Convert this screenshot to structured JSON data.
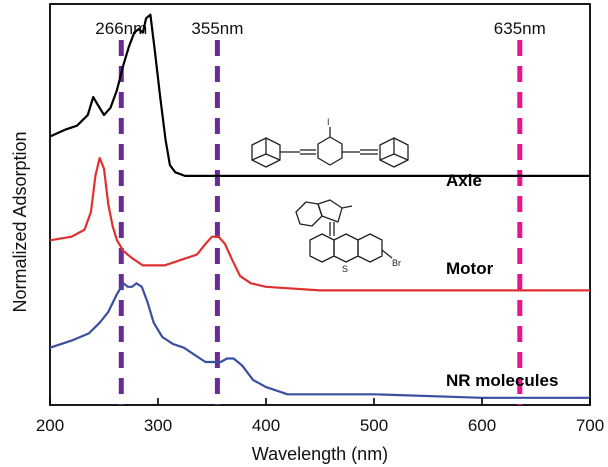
{
  "chart_data": {
    "type": "line",
    "xlabel": "Wavelength (nm)",
    "ylabel": "Normalized Adsorption",
    "xlim": [
      200,
      700
    ],
    "x_ticks": [
      200,
      300,
      400,
      500,
      600,
      700
    ],
    "grid": false,
    "y_ticks_shown": false,
    "markers": [
      {
        "x": 266,
        "label": "266nm",
        "color": "#6a2a9a"
      },
      {
        "x": 355,
        "label": "355nm",
        "color": "#6a2a9a"
      },
      {
        "x": 635,
        "label": "635nm",
        "color": "#e8148c"
      }
    ],
    "series": [
      {
        "name": "Axle",
        "color": "#000000",
        "points": [
          [
            200,
            0.63
          ],
          [
            215,
            0.65
          ],
          [
            225,
            0.66
          ],
          [
            235,
            0.69
          ],
          [
            240,
            0.74
          ],
          [
            244,
            0.72
          ],
          [
            250,
            0.69
          ],
          [
            256,
            0.71
          ],
          [
            262,
            0.76
          ],
          [
            268,
            0.83
          ],
          [
            273,
            0.88
          ],
          [
            278,
            0.92
          ],
          [
            282,
            0.93
          ],
          [
            286,
            0.92
          ],
          [
            289,
            0.96
          ],
          [
            293,
            0.97
          ],
          [
            297,
            0.87
          ],
          [
            302,
            0.74
          ],
          [
            307,
            0.62
          ],
          [
            311,
            0.55
          ],
          [
            316,
            0.53
          ],
          [
            325,
            0.52
          ],
          [
            350,
            0.52
          ],
          [
            400,
            0.52
          ],
          [
            500,
            0.52
          ],
          [
            600,
            0.52
          ],
          [
            700,
            0.52
          ]
        ]
      },
      {
        "name": "Motor",
        "color": "#e03131",
        "points": [
          [
            200,
            0.34
          ],
          [
            220,
            0.35
          ],
          [
            232,
            0.37
          ],
          [
            238,
            0.42
          ],
          [
            242,
            0.52
          ],
          [
            246,
            0.57
          ],
          [
            250,
            0.54
          ],
          [
            254,
            0.44
          ],
          [
            258,
            0.38
          ],
          [
            262,
            0.34
          ],
          [
            268,
            0.31
          ],
          [
            276,
            0.29
          ],
          [
            286,
            0.27
          ],
          [
            296,
            0.27
          ],
          [
            306,
            0.27
          ],
          [
            316,
            0.28
          ],
          [
            326,
            0.29
          ],
          [
            336,
            0.3
          ],
          [
            344,
            0.33
          ],
          [
            350,
            0.35
          ],
          [
            356,
            0.35
          ],
          [
            362,
            0.33
          ],
          [
            368,
            0.29
          ],
          [
            376,
            0.24
          ],
          [
            386,
            0.22
          ],
          [
            400,
            0.21
          ],
          [
            450,
            0.2
          ],
          [
            500,
            0.2
          ],
          [
            600,
            0.2
          ],
          [
            700,
            0.2
          ]
        ]
      },
      {
        "name": "NR molecules",
        "color": "#3b4fa0",
        "points": [
          [
            200,
            0.04
          ],
          [
            220,
            0.06
          ],
          [
            236,
            0.08
          ],
          [
            246,
            0.11
          ],
          [
            254,
            0.14
          ],
          [
            262,
            0.19
          ],
          [
            268,
            0.22
          ],
          [
            272,
            0.21
          ],
          [
            276,
            0.21
          ],
          [
            280,
            0.22
          ],
          [
            285,
            0.21
          ],
          [
            290,
            0.17
          ],
          [
            296,
            0.11
          ],
          [
            304,
            0.07
          ],
          [
            314,
            0.05
          ],
          [
            324,
            0.04
          ],
          [
            334,
            0.02
          ],
          [
            344,
            -0.0
          ],
          [
            352,
            -0.0
          ],
          [
            358,
            0.0
          ],
          [
            364,
            0.01
          ],
          [
            370,
            0.01
          ],
          [
            378,
            -0.01
          ],
          [
            388,
            -0.05
          ],
          [
            400,
            -0.07
          ],
          [
            420,
            -0.09
          ],
          [
            450,
            -0.09
          ],
          [
            500,
            -0.09
          ],
          [
            600,
            -0.1
          ],
          [
            700,
            -0.1
          ]
        ]
      }
    ]
  },
  "molecules": {
    "axle_substituent": "I",
    "motor_substituent_s": "S",
    "motor_substituent_br": "Br"
  }
}
